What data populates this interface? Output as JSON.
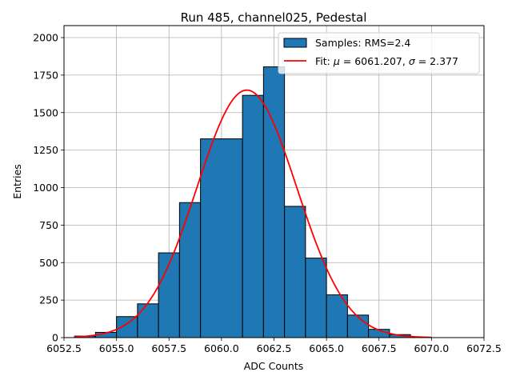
{
  "chart_data": {
    "type": "bar",
    "title": "Run 485, channel025, Pedestal",
    "xlabel": "ADC Counts",
    "ylabel": "Entries",
    "xlim": [
      6052.5,
      6072.5
    ],
    "ylim": [
      0,
      2080
    ],
    "xticks": [
      6052.5,
      6055.0,
      6057.5,
      6060.0,
      6062.5,
      6065.0,
      6067.5,
      6070.0,
      6072.5
    ],
    "xtick_labels": [
      "6052.5",
      "6055.0",
      "6057.5",
      "6060.0",
      "6062.5",
      "6065.0",
      "6067.5",
      "6070.0",
      "6072.5"
    ],
    "yticks": [
      0,
      250,
      500,
      750,
      1000,
      1250,
      1500,
      1750,
      2000
    ],
    "ytick_labels": [
      "0",
      "250",
      "500",
      "750",
      "1000",
      "1250",
      "1500",
      "1750",
      "2000"
    ],
    "grid": true,
    "legend_position": "top-right",
    "histogram": {
      "label": "Samples: RMS=2.4",
      "color": "#1f77b4",
      "edgecolor": "#000000",
      "bins": [
        {
          "x0": 6053,
          "x1": 6054,
          "value": 10
        },
        {
          "x0": 6054,
          "x1": 6055,
          "value": 35
        },
        {
          "x0": 6055,
          "x1": 6056,
          "value": 140
        },
        {
          "x0": 6056,
          "x1": 6057,
          "value": 225
        },
        {
          "x0": 6057,
          "x1": 6058,
          "value": 565
        },
        {
          "x0": 6058,
          "x1": 6059,
          "value": 900
        },
        {
          "x0": 6059,
          "x1": 6061,
          "value": 1325
        },
        {
          "x0": 6061,
          "x1": 6062,
          "value": 1615
        },
        {
          "x0": 6062,
          "x1": 6063,
          "value": 1805
        },
        {
          "x0": 6063,
          "x1": 6064,
          "value": 875
        },
        {
          "x0": 6064,
          "x1": 6065,
          "value": 530
        },
        {
          "x0": 6065,
          "x1": 6066,
          "value": 285
        },
        {
          "x0": 6066,
          "x1": 6067,
          "value": 150
        },
        {
          "x0": 6067,
          "x1": 6068,
          "value": 55
        },
        {
          "x0": 6068,
          "x1": 6069,
          "value": 20
        }
      ]
    },
    "fit": {
      "label": "Fit: μ = 6061.207, σ = 2.377",
      "label_prefix": "Fit: ",
      "mu_symbol": "μ",
      "mu_text": " = 6061.207, ",
      "sigma_symbol": "σ",
      "sigma_text": " = 2.377",
      "color": "#ff0000",
      "mu": 6061.207,
      "sigma": 2.377,
      "amplitude": 1650,
      "x_range": [
        6053,
        6070
      ]
    }
  }
}
